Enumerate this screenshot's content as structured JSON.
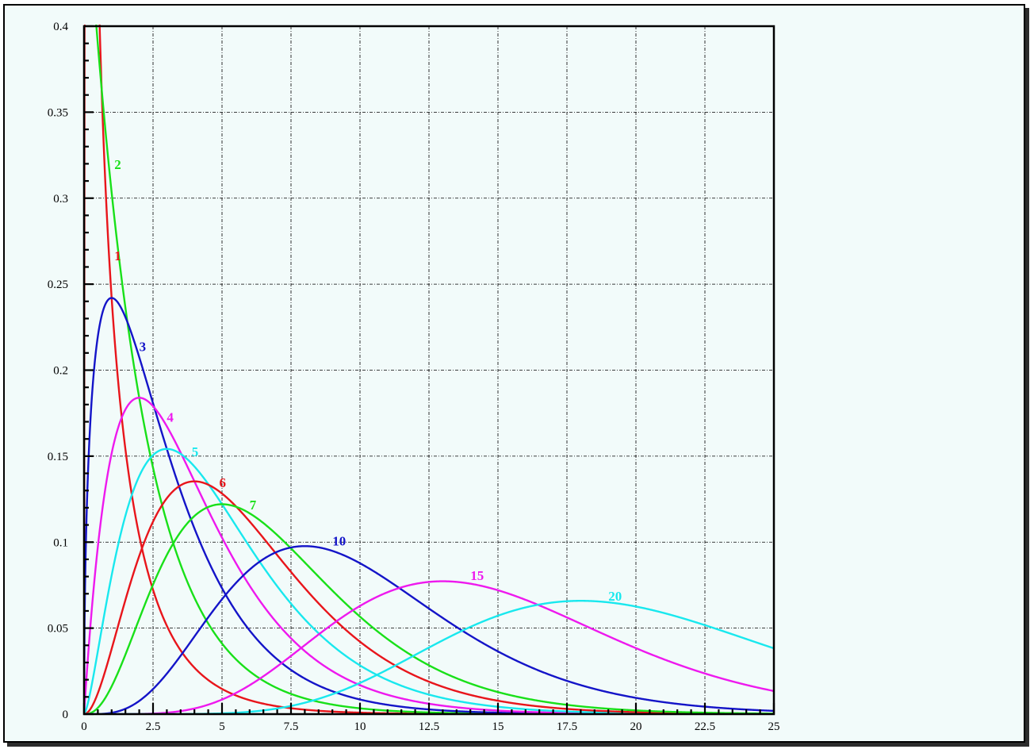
{
  "chart_data": {
    "type": "line",
    "title": "",
    "xlabel": "",
    "ylabel": "",
    "xlim": [
      0,
      25
    ],
    "ylim": [
      0,
      0.4
    ],
    "grid": true,
    "x_ticks": [
      "0",
      "2.5",
      "5",
      "7.5",
      "10",
      "12.5",
      "15",
      "17.5",
      "20",
      "22.5",
      "25"
    ],
    "y_ticks": [
      "0",
      "0.05",
      "0.1",
      "0.15",
      "0.2",
      "0.25",
      "0.3",
      "0.35",
      "0.4"
    ],
    "series": [
      {
        "name": "1",
        "degrees_of_freedom": 1,
        "color": "#e8151b",
        "label_at": [
          1.1,
          0.264
        ]
      },
      {
        "name": "2",
        "degrees_of_freedom": 2,
        "color": "#19e019",
        "label_at": [
          1.1,
          0.317
        ]
      },
      {
        "name": "3",
        "degrees_of_freedom": 3,
        "color": "#1414c8",
        "label_at": [
          2.0,
          0.211
        ]
      },
      {
        "name": "4",
        "degrees_of_freedom": 4,
        "color": "#ee19ee",
        "label_at": [
          3.0,
          0.17
        ]
      },
      {
        "name": "5",
        "degrees_of_freedom": 5,
        "color": "#19e8ee",
        "label_at": [
          3.9,
          0.15
        ]
      },
      {
        "name": "6",
        "degrees_of_freedom": 6,
        "color": "#e8151b",
        "label_at": [
          4.9,
          0.132
        ]
      },
      {
        "name": "7",
        "degrees_of_freedom": 7,
        "color": "#19e019",
        "label_at": [
          6.0,
          0.119
        ]
      },
      {
        "name": "10",
        "degrees_of_freedom": 10,
        "color": "#1414c8",
        "label_at": [
          9.0,
          0.098
        ]
      },
      {
        "name": "15",
        "degrees_of_freedom": 15,
        "color": "#ee19ee",
        "label_at": [
          14.0,
          0.078
        ]
      },
      {
        "name": "20",
        "degrees_of_freedom": 20,
        "color": "#19e8ee",
        "label_at": [
          19.0,
          0.066
        ]
      }
    ]
  }
}
